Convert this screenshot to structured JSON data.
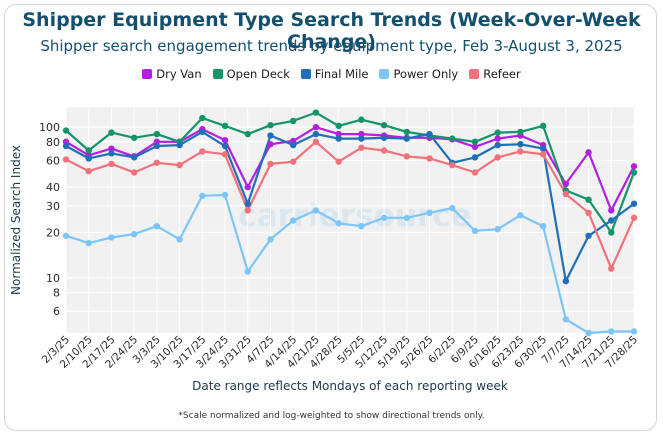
{
  "chart_data": {
    "type": "line",
    "title": "Shipper Equipment Type Search Trends (Week-Over-Week Change)",
    "subtitle": "Shipper search engagement trends by equipment type, Feb 3-August 3, 2025",
    "xlabel": "Date range reflects Mondays of each reporting week",
    "ylabel": "Normalized Search Index",
    "yscale": "log",
    "ylim": [
      4.5,
      130
    ],
    "yticks": [
      6,
      8,
      10,
      20,
      30,
      40,
      60,
      80,
      100
    ],
    "grid": true,
    "legend_position": "top-center",
    "watermark": "carriersource",
    "footnote": "*Scale normalized and log-weighted to show directional trends only.",
    "x": [
      "2/3/25",
      "2/10/25",
      "2/17/25",
      "2/24/25",
      "3/3/25",
      "3/10/25",
      "3/17/25",
      "3/24/25",
      "3/31/25",
      "4/7/25",
      "4/14/25",
      "4/21/25",
      "4/28/25",
      "5/5/25",
      "5/12/25",
      "5/19/25",
      "5/26/25",
      "6/2/25",
      "6/9/25",
      "6/16/25",
      "6/23/25",
      "6/30/25",
      "7/7/25",
      "7/14/25",
      "7/21/25",
      "7/28/25"
    ],
    "series": [
      {
        "name": "Dry Van",
        "color": "#b41fe0",
        "values": [
          80,
          65,
          72,
          64,
          80,
          80,
          97,
          82,
          40,
          77,
          81,
          100,
          90,
          90,
          88,
          85,
          85,
          83,
          74,
          84,
          88,
          76,
          42,
          68,
          28,
          55
        ]
      },
      {
        "name": "Open Deck",
        "color": "#14946b",
        "values": [
          95,
          70,
          92,
          85,
          90,
          80,
          115,
          102,
          90,
          103,
          110,
          125,
          102,
          112,
          103,
          93,
          88,
          84,
          80,
          92,
          93,
          102,
          38,
          33,
          20,
          50
        ]
      },
      {
        "name": "Final Mile",
        "color": "#1f6fb8",
        "values": [
          75,
          62,
          67,
          63,
          75,
          76,
          93,
          75,
          31,
          88,
          76,
          90,
          84,
          84,
          85,
          84,
          90,
          58,
          63,
          76,
          77,
          72,
          9.5,
          19,
          24,
          31
        ]
      },
      {
        "name": "Power Only",
        "color": "#7cc6f7",
        "values": [
          19,
          17,
          18.5,
          19.5,
          22,
          18,
          35,
          35.5,
          11,
          18,
          24,
          28,
          23,
          22,
          25,
          25,
          27,
          29,
          20.5,
          21,
          26,
          22,
          5.3,
          4.3,
          4.4,
          4.4
        ]
      },
      {
        "name": "Refeer",
        "color": "#f2727c",
        "values": [
          61,
          51,
          57,
          50,
          58,
          56,
          69,
          66,
          28,
          57,
          59,
          80,
          59,
          73,
          70,
          64,
          62,
          56,
          50,
          63,
          69,
          66,
          36,
          27,
          11.5,
          25
        ]
      }
    ]
  }
}
